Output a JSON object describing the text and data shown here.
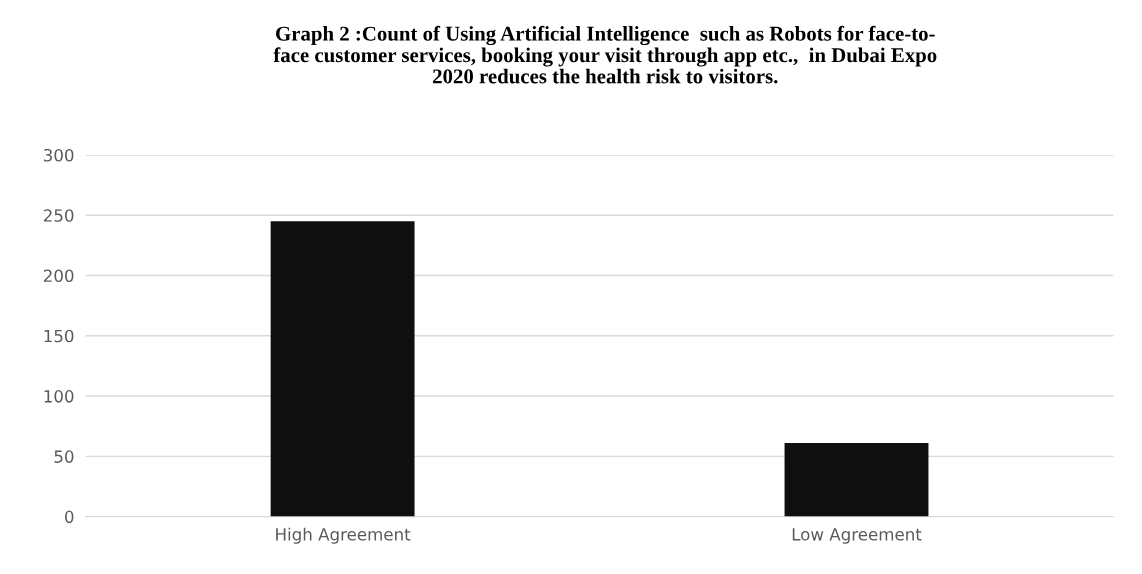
{
  "chart_data": {
    "type": "bar",
    "title": "Graph 2 :Count of Using Artificial Intelligence  such as Robots for face-to-\nface customer services, booking your visit through app etc.,  in Dubai Expo\n2020 reduces the health risk to visitors.",
    "categories": [
      "High Agreement",
      "Low Agreement"
    ],
    "values": [
      245,
      61
    ],
    "color": "#0f0f0f",
    "ylim": [
      0,
      300
    ],
    "yticks": [
      0,
      50,
      100,
      150,
      200,
      250,
      300
    ],
    "grid": "y"
  }
}
